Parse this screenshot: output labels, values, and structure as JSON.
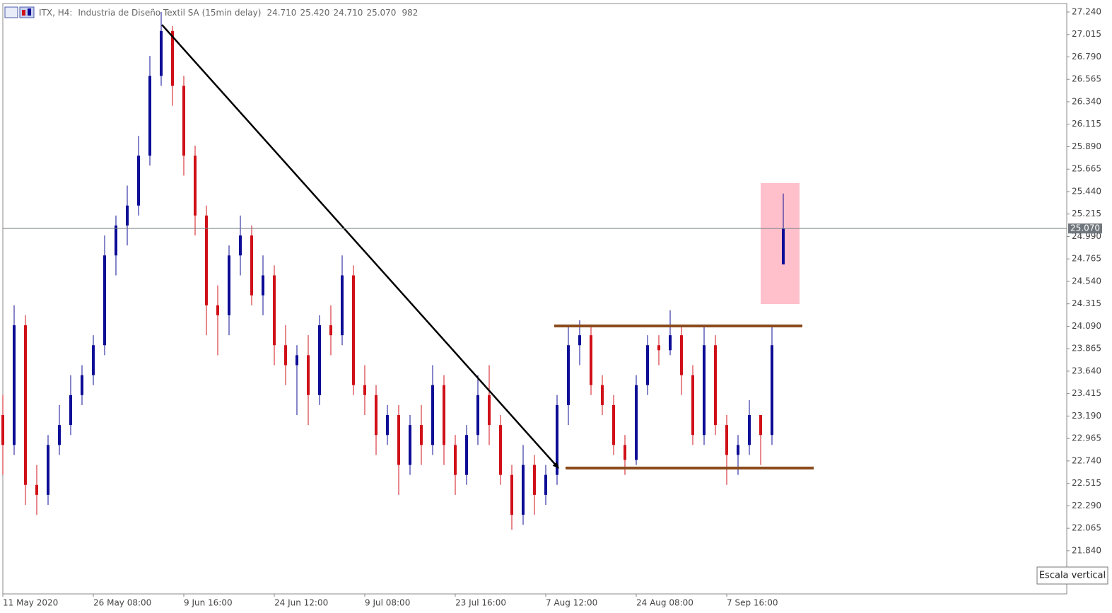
{
  "chart_data": {
    "type": "candlestick",
    "symbol": "ITX, H4:",
    "title": "Industria de Diseño Textil SA (15min delay)",
    "header_values": [
      "24.710",
      "25.420",
      "24.710",
      "25.070",
      "982"
    ],
    "tooltip": "Escala vertical",
    "current_price": {
      "value": 25.07,
      "label": "25.070"
    },
    "up_color": "#0c0c96",
    "down_color": "#d01018",
    "ylim": [
      21.407,
      27.325
    ],
    "yticks": [
      {
        "value": 27.24,
        "label": "27.240"
      },
      27.015,
      {
        "value": 26.79,
        "label": "26.790"
      },
      26.565,
      {
        "value": 26.34,
        "label": "26.340"
      },
      26.115,
      {
        "value": 25.89,
        "label": "25.890"
      },
      25.665,
      {
        "value": 25.44,
        "label": "25.440"
      },
      25.215,
      {
        "value": 24.99,
        "label": "24.990"
      },
      24.765,
      {
        "value": 24.54,
        "label": "24.540"
      },
      24.315,
      {
        "value": 24.09,
        "label": "24.090"
      },
      23.865,
      {
        "value": 23.64,
        "label": "23.640"
      },
      23.415,
      {
        "value": 23.19,
        "label": "23.190"
      },
      22.965,
      {
        "value": 22.74,
        "label": "22.740"
      },
      22.515,
      {
        "value": 22.29,
        "label": "22.290"
      },
      22.065,
      {
        "value": 21.84,
        "label": "21.840"
      }
    ],
    "xticks": [
      {
        "value": 0,
        "label": "11 May 2020"
      },
      {
        "value": 8,
        "label": "26 May 08:00"
      },
      {
        "value": 16,
        "label": "9 Jun 16:00"
      },
      {
        "value": 24,
        "label": "24 Jun 12:00"
      },
      {
        "value": 32,
        "label": "9 Jul 08:00"
      },
      {
        "value": 40,
        "label": "23 Jul 16:00"
      },
      {
        "value": 48,
        "label": "7 Aug 12:00"
      },
      {
        "value": 56,
        "label": "24 Aug 08:00"
      },
      {
        "value": 64,
        "label": "7 Sep 16:00"
      }
    ],
    "open": [
      23.2,
      22.9,
      24.1,
      22.5,
      22.4,
      22.9,
      23.1,
      23.4,
      23.6,
      23.9,
      24.8,
      25.1,
      25.3,
      25.8,
      26.6,
      27.05,
      26.5,
      25.8,
      25.2,
      24.3,
      24.2,
      24.8,
      25.0,
      24.4,
      24.6,
      23.9,
      23.7,
      23.8,
      23.4,
      24.1,
      24.0,
      24.6,
      23.5,
      23.4,
      23.0,
      23.2,
      22.7,
      23.1,
      22.9,
      23.5,
      22.9,
      22.6,
      23.0,
      23.4,
      23.1,
      22.6,
      22.2,
      22.7,
      22.4,
      22.6,
      23.3,
      23.9,
      24.0,
      23.5,
      23.3,
      22.9,
      22.75,
      23.5,
      23.9,
      23.85,
      24.0,
      23.6,
      23.0,
      23.9,
      23.1,
      22.8,
      22.9,
      23.2,
      23.0,
      24.71
    ],
    "high": [
      23.4,
      24.3,
      24.2,
      22.7,
      23.0,
      23.3,
      23.6,
      23.7,
      24.0,
      25.0,
      25.2,
      25.5,
      26.0,
      26.8,
      27.24,
      27.1,
      26.6,
      25.9,
      25.3,
      24.5,
      24.9,
      25.2,
      25.1,
      24.8,
      24.7,
      24.1,
      23.9,
      24.0,
      24.2,
      24.3,
      24.8,
      24.7,
      23.7,
      23.5,
      23.3,
      23.3,
      23.2,
      23.3,
      23.7,
      23.6,
      23.0,
      23.1,
      23.6,
      23.7,
      23.2,
      22.7,
      22.9,
      22.8,
      22.7,
      23.4,
      24.1,
      24.15,
      24.1,
      23.6,
      23.4,
      23.0,
      23.6,
      24.0,
      24.0,
      24.25,
      24.1,
      23.7,
      24.1,
      24.0,
      23.2,
      23.0,
      23.35,
      23.2,
      24.1,
      25.42
    ],
    "low": [
      22.6,
      22.8,
      22.3,
      22.2,
      22.3,
      22.8,
      23.0,
      23.3,
      23.5,
      23.8,
      24.6,
      24.9,
      25.2,
      25.7,
      26.5,
      26.3,
      25.6,
      25.0,
      24.0,
      23.8,
      24.0,
      24.6,
      24.3,
      24.2,
      23.7,
      23.5,
      23.2,
      23.1,
      23.3,
      23.8,
      23.9,
      23.4,
      23.2,
      22.8,
      22.9,
      22.4,
      22.6,
      22.7,
      22.8,
      22.7,
      22.4,
      22.5,
      22.9,
      22.9,
      22.5,
      22.05,
      22.1,
      22.2,
      22.3,
      22.5,
      23.1,
      23.7,
      23.4,
      23.2,
      22.8,
      22.6,
      22.7,
      23.4,
      23.7,
      23.8,
      23.4,
      22.9,
      22.9,
      23.0,
      22.5,
      22.6,
      22.8,
      22.7,
      22.9,
      24.71
    ],
    "close": [
      22.9,
      24.1,
      22.5,
      22.4,
      22.9,
      23.1,
      23.4,
      23.6,
      23.9,
      24.8,
      25.1,
      25.3,
      25.8,
      26.6,
      27.05,
      26.5,
      25.8,
      25.2,
      24.3,
      24.2,
      24.8,
      25.0,
      24.4,
      24.6,
      23.9,
      23.7,
      23.8,
      23.4,
      24.1,
      24.0,
      24.6,
      23.5,
      23.4,
      23.0,
      23.2,
      22.7,
      23.1,
      22.9,
      23.5,
      22.9,
      22.6,
      23.0,
      23.4,
      23.1,
      22.6,
      22.2,
      22.7,
      22.4,
      22.6,
      23.3,
      23.9,
      24.0,
      23.5,
      23.3,
      22.9,
      22.75,
      23.5,
      23.9,
      23.85,
      24.0,
      23.6,
      23.0,
      23.9,
      23.1,
      22.8,
      22.9,
      23.2,
      23.0,
      23.9,
      25.07
    ]
  }
}
